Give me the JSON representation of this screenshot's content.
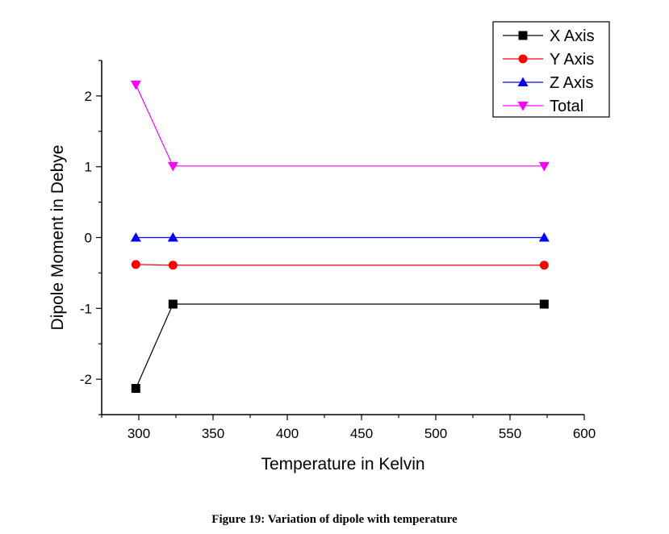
{
  "caption": "Figure 19: Variation of dipole with temperature",
  "chart_data": {
    "type": "line",
    "xlabel": "Temperature in Kelvin",
    "ylabel": "Dipole Moment in Debye",
    "xlim": [
      275,
      600
    ],
    "ylim": [
      -2.5,
      2.5
    ],
    "xticks": [
      300,
      350,
      400,
      450,
      500,
      550,
      600
    ],
    "yticks": [
      -2,
      -1,
      0,
      1,
      2
    ],
    "grid": false,
    "legend": "top-right",
    "series": [
      {
        "name": "X Axis",
        "color": "#000000",
        "marker": "square",
        "x": [
          298,
          323,
          573
        ],
        "y": [
          -2.13,
          -0.94,
          -0.94
        ]
      },
      {
        "name": "Y Axis",
        "color": "#ff0000",
        "marker": "circle",
        "x": [
          298,
          323,
          573
        ],
        "y": [
          -0.38,
          -0.39,
          -0.39
        ]
      },
      {
        "name": "Z Axis",
        "color": "#0000ff",
        "marker": "triangle-up",
        "x": [
          298,
          323,
          573
        ],
        "y": [
          0.0,
          0.0,
          0.0
        ]
      },
      {
        "name": "Total",
        "color": "#ff00ff",
        "marker": "triangle-down",
        "x": [
          298,
          323,
          573
        ],
        "y": [
          2.16,
          1.01,
          1.01
        ]
      }
    ]
  }
}
